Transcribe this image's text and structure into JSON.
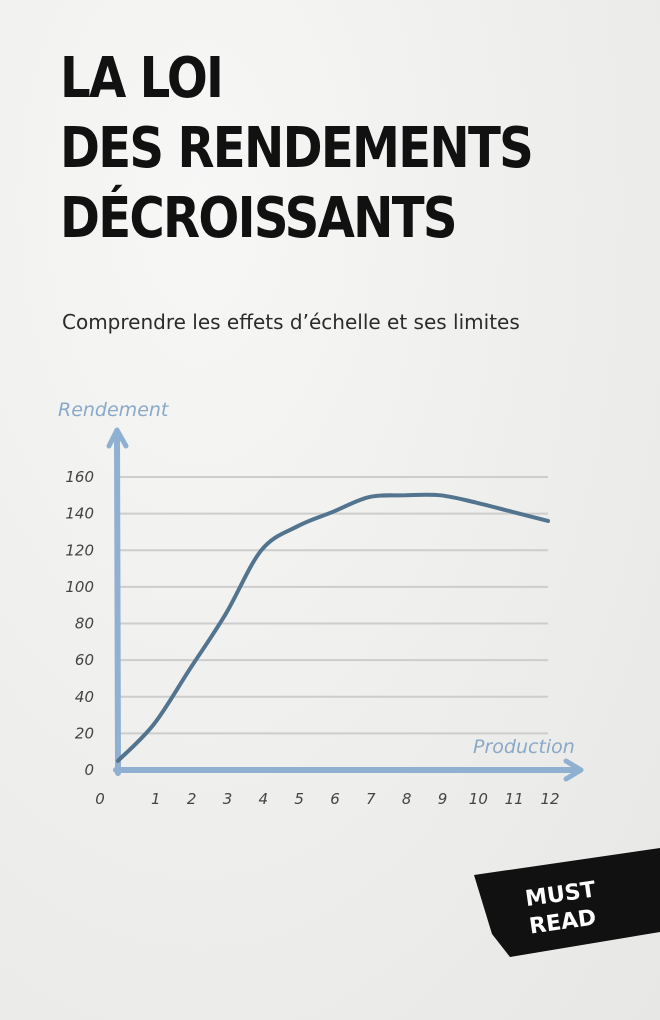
{
  "cover": {
    "title_lines": [
      "LA LOI",
      "DES RENDEMENTS",
      "DÉCROISSANTS"
    ],
    "subtitle": "Comprendre les effets d’échelle et ses limites",
    "badge": [
      "MUST",
      "READ"
    ]
  },
  "colors": {
    "curve": "#52748f",
    "axis": "#8fb0d0",
    "grid": "#cdcdcd",
    "badge_bg": "#111111"
  },
  "chart_data": {
    "type": "line",
    "title": "",
    "xlabel": "Production",
    "ylabel": "Rendement",
    "x_ticks": [
      0,
      1,
      2,
      3,
      4,
      5,
      6,
      7,
      8,
      9,
      10,
      11,
      12
    ],
    "y_ticks": [
      0,
      20,
      40,
      60,
      80,
      100,
      120,
      140,
      160
    ],
    "xlim": [
      0,
      12
    ],
    "ylim": [
      0,
      160
    ],
    "grid": true,
    "series": [
      {
        "x": [
          0,
          1,
          2,
          3,
          4,
          5,
          6,
          7,
          8,
          9,
          10,
          11,
          12
        ],
        "y": [
          5,
          25,
          55,
          85,
          120,
          133,
          141,
          149,
          150,
          150,
          146,
          141,
          136
        ]
      }
    ]
  }
}
